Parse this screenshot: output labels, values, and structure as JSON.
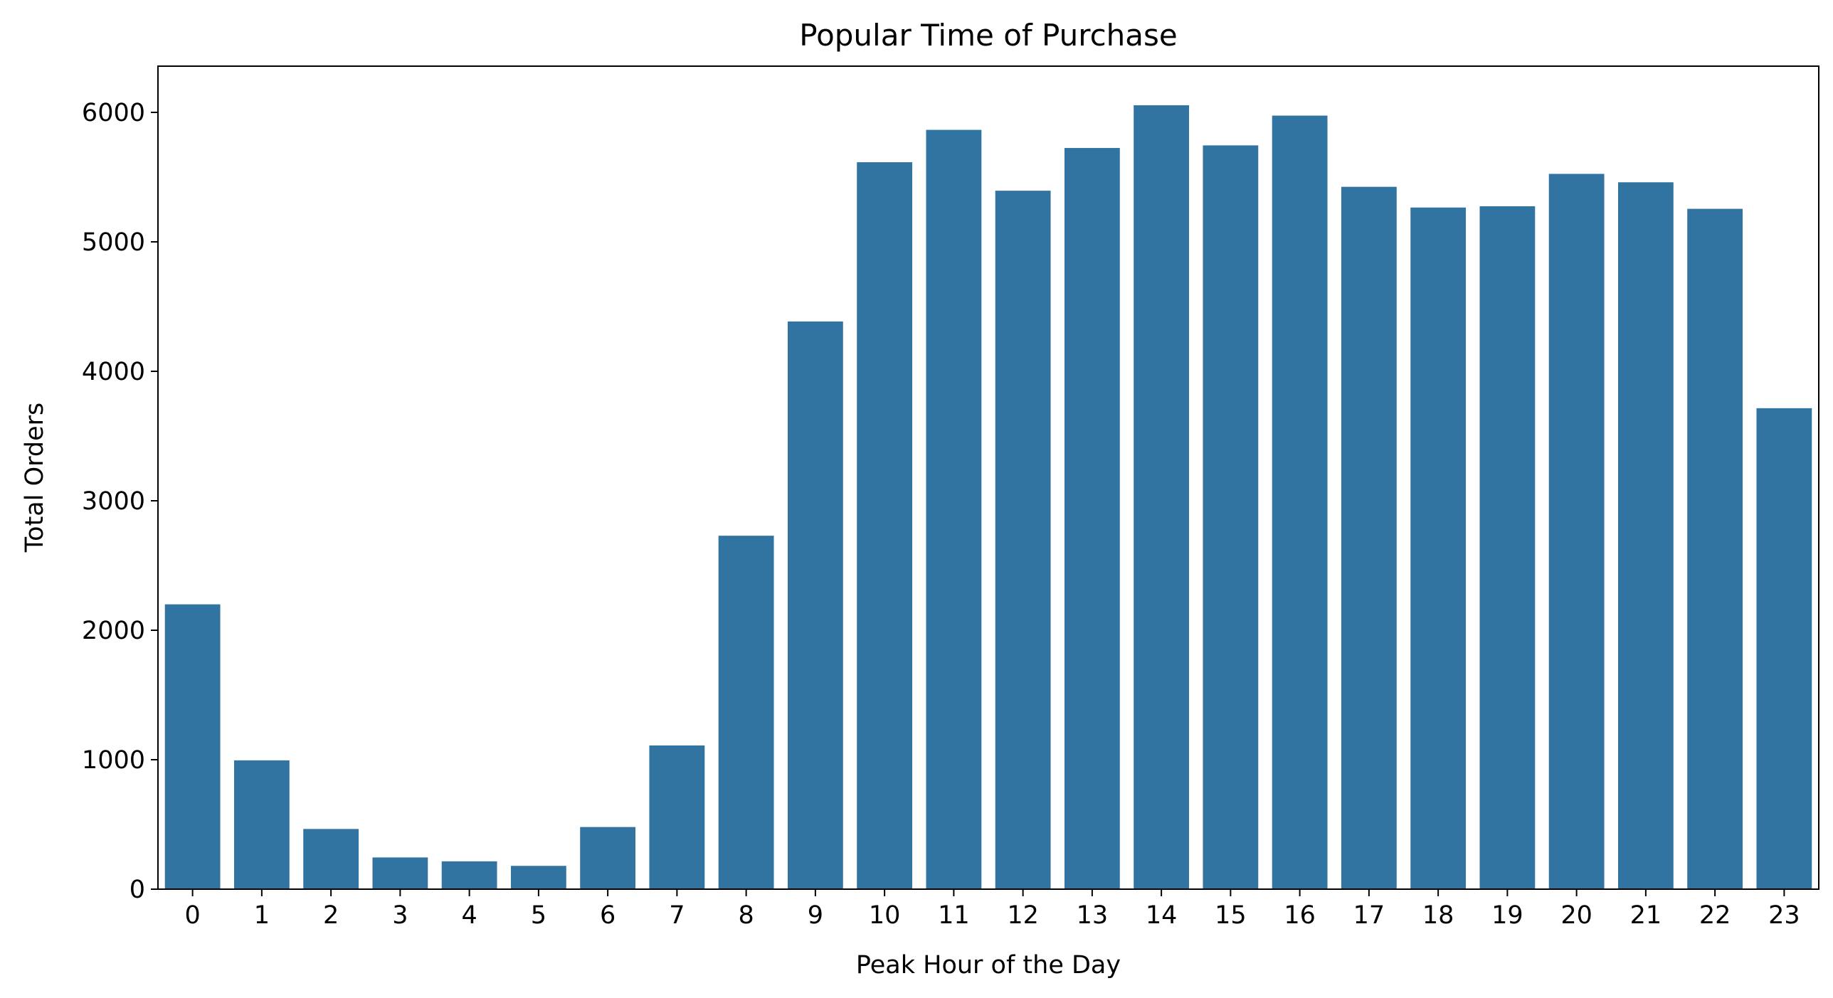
{
  "chart_data": {
    "type": "bar",
    "title": "Popular Time of Purchase",
    "xlabel": "Peak Hour of the Day",
    "ylabel": "Total Orders",
    "categories": [
      "0",
      "1",
      "2",
      "3",
      "4",
      "5",
      "6",
      "7",
      "8",
      "9",
      "10",
      "11",
      "12",
      "13",
      "14",
      "15",
      "16",
      "17",
      "18",
      "19",
      "20",
      "21",
      "22",
      "23"
    ],
    "values": [
      2200,
      995,
      465,
      245,
      215,
      180,
      480,
      1110,
      2730,
      4385,
      5615,
      5865,
      5395,
      5725,
      6055,
      5745,
      5975,
      5425,
      5265,
      5275,
      5525,
      5460,
      5255,
      3715
    ],
    "yticks": [
      "0",
      "1000",
      "2000",
      "3000",
      "4000",
      "5000",
      "6000"
    ],
    "ylim": [
      0,
      6357
    ],
    "bar_color": "#3274a1",
    "grid": false,
    "legend": "none"
  }
}
